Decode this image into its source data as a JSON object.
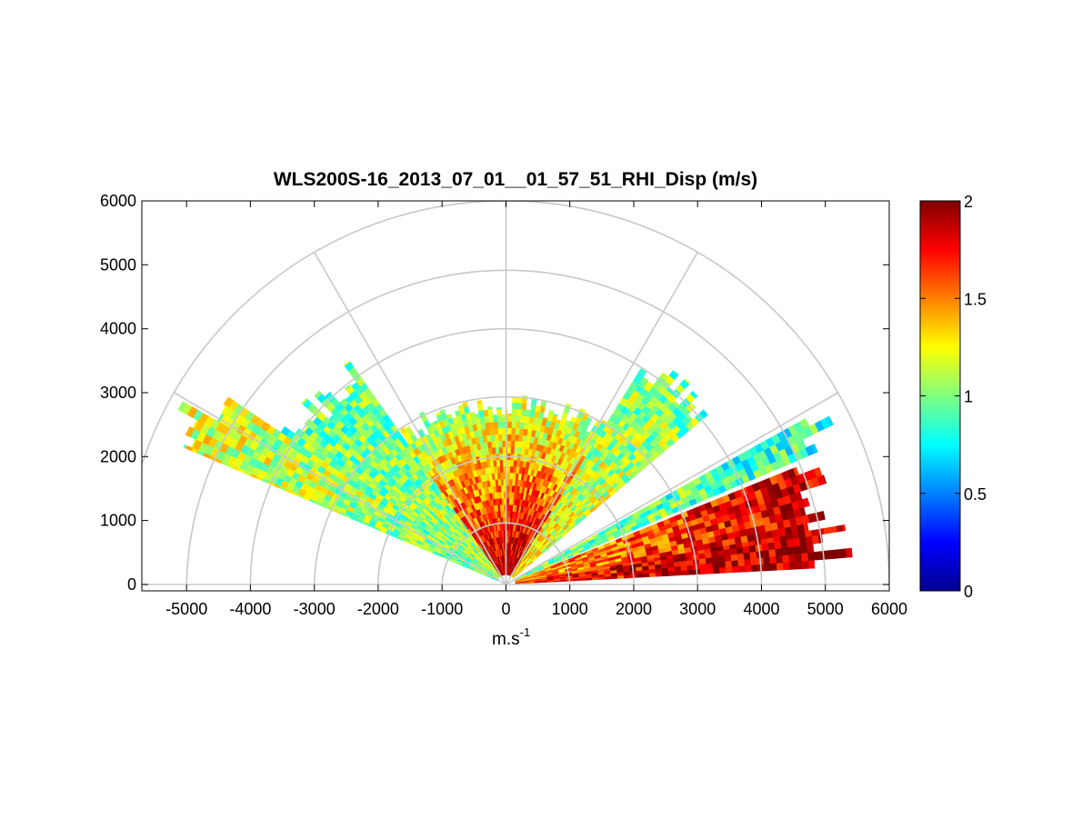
{
  "chart_data": {
    "type": "heatmap",
    "subtype": "polar-rhi-scan",
    "title": "WLS200S-16_2013_07_01__01_57_51_RHI_Disp (m/s)",
    "xlabel": "m.s-1",
    "xlabel_base": "m.s",
    "xlabel_exponent": "-1",
    "ylabel": "",
    "xlim": [
      -5700,
      6000
    ],
    "ylim": [
      -100,
      6000
    ],
    "x_ticks": [
      -5000,
      -4000,
      -3000,
      -2000,
      -1000,
      0,
      1000,
      2000,
      3000,
      4000,
      5000,
      6000
    ],
    "x_tick_labels": [
      "-5000",
      "-4000",
      "-3000",
      "-2000",
      "-1000",
      "0",
      "1000",
      "2000",
      "3000",
      "4000",
      "5000",
      "6000"
    ],
    "y_ticks": [
      0,
      1000,
      2000,
      3000,
      4000,
      5000,
      6000
    ],
    "y_tick_labels": [
      "0",
      "1000",
      "2000",
      "3000",
      "4000",
      "5000",
      "6000"
    ],
    "polar_grid": {
      "rings": [
        1000,
        2000,
        3000,
        4000,
        5000,
        6000
      ],
      "spokes_deg": [
        0,
        30,
        60,
        90,
        120,
        150,
        180
      ]
    },
    "grid": true,
    "colorbar": {
      "colormap": "jet",
      "range": [
        0,
        2
      ],
      "ticks": [
        0,
        0.5,
        1,
        1.5,
        2
      ],
      "tick_labels": [
        "0",
        "0.5",
        "1",
        "1.5",
        "2"
      ]
    },
    "sectors": [
      {
        "az_start": 3,
        "az_end": 10,
        "r_start": 150,
        "r_end": 5500,
        "value_near": 1.7,
        "value_far": 1.95
      },
      {
        "az_start": 10,
        "az_end": 22,
        "r_start": 150,
        "r_end": 5300,
        "value_near": 1.4,
        "value_far": 1.9
      },
      {
        "az_start": 23,
        "az_end": 29,
        "r_start": 150,
        "r_end": 5800,
        "value_near": 1.0,
        "value_far": 0.85
      },
      {
        "az_start": 40,
        "az_end": 58,
        "r_start": 150,
        "r_end": 4300,
        "value_near": 1.3,
        "value_far": 0.95
      },
      {
        "az_start": 58,
        "az_end": 90,
        "r_start": 150,
        "r_end": 3000,
        "value_near": 1.95,
        "value_far": 1.05
      },
      {
        "az_start": 90,
        "az_end": 125,
        "r_start": 150,
        "r_end": 3000,
        "value_near": 1.9,
        "value_far": 1.0
      },
      {
        "az_start": 125,
        "az_end": 146,
        "r_start": 150,
        "r_end": 4300,
        "value_near": 1.1,
        "value_far": 0.95
      },
      {
        "az_start": 146,
        "az_end": 157,
        "r_start": 150,
        "r_end": 5900,
        "value_near": 0.95,
        "value_far": 1.2
      }
    ]
  }
}
